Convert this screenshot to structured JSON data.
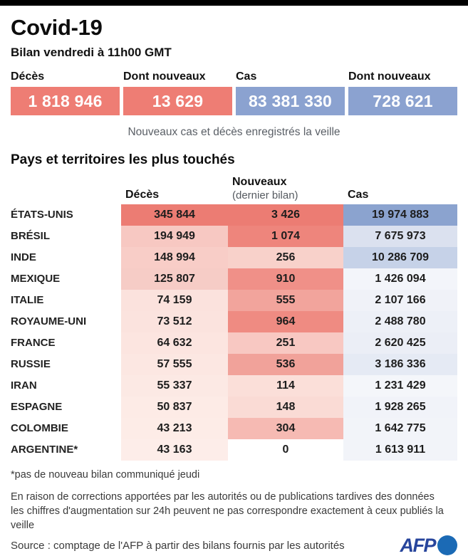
{
  "header": {
    "title": "Covid-19",
    "subtitle": "Bilan vendredi à 11h00 GMT"
  },
  "summary": {
    "items": [
      {
        "label": "Décès",
        "value": "1 818 946",
        "color": "#ee7d74"
      },
      {
        "label": "Dont nouveaux",
        "value": "13 629",
        "color": "#ee7d74"
      },
      {
        "label": "Cas",
        "value": "83 381 330",
        "color": "#8ba2d0"
      },
      {
        "label": "Dont nouveaux",
        "value": "728 621",
        "color": "#8ba2d0"
      }
    ],
    "caption": "Nouveaux cas et décès enregistrés la veille"
  },
  "table": {
    "title": "Pays et territoires les plus touchés",
    "columns": {
      "deces": "Décès",
      "nouveaux": "Nouveaux",
      "nouveaux_sub": "(dernier bilan)",
      "cas": "Cas"
    },
    "rows": [
      {
        "country": "ÉTATS-UNIS",
        "deces": "345 844",
        "deces_bg": "#ec7c73",
        "nouveaux": "3 426",
        "nouveaux_bg": "#ec7c73",
        "cas": "19 974 883",
        "cas_bg": "#8ba3cf"
      },
      {
        "country": "BRÉSIL",
        "deces": "194 949",
        "deces_bg": "#f7c8c2",
        "nouveaux": "1 074",
        "nouveaux_bg": "#ee857c",
        "cas": "7 675 973",
        "cas_bg": "#dbe1ef"
      },
      {
        "country": "INDE",
        "deces": "148 994",
        "deces_bg": "#f8cdc7",
        "nouveaux": "256",
        "nouveaux_bg": "#f8d1ca",
        "cas": "10 286 709",
        "cas_bg": "#c6d2e8"
      },
      {
        "country": "MEXIQUE",
        "deces": "125 807",
        "deces_bg": "#f6ccc6",
        "nouveaux": "910",
        "nouveaux_bg": "#f09088",
        "cas": "1 426 094",
        "cas_bg": "#f3f5fa"
      },
      {
        "country": "ITALIE",
        "deces": "74 159",
        "deces_bg": "#fbe2dd",
        "nouveaux": "555",
        "nouveaux_bg": "#f2a49c",
        "cas": "2 107 166",
        "cas_bg": "#f0f2f8"
      },
      {
        "country": "ROYAUME-UNI",
        "deces": "73 512",
        "deces_bg": "#fbe3de",
        "nouveaux": "964",
        "nouveaux_bg": "#ef8b82",
        "cas": "2 488 780",
        "cas_bg": "#edf0f7"
      },
      {
        "country": "FRANCE",
        "deces": "64 632",
        "deces_bg": "#fce5e0",
        "nouveaux": "251",
        "nouveaux_bg": "#f8c8c2",
        "cas": "2 620 425",
        "cas_bg": "#ebeef6"
      },
      {
        "country": "RUSSIE",
        "deces": "57 555",
        "deces_bg": "#fce7e2",
        "nouveaux": "536",
        "nouveaux_bg": "#f1a29a",
        "cas": "3 186 336",
        "cas_bg": "#e5eaf4"
      },
      {
        "country": "IRAN",
        "deces": "55 337",
        "deces_bg": "#fce9e4",
        "nouveaux": "114",
        "nouveaux_bg": "#fbdfd9",
        "cas": "1 231 429",
        "cas_bg": "#f4f6fa"
      },
      {
        "country": "ESPAGNE",
        "deces": "50 837",
        "deces_bg": "#fdebe6",
        "nouveaux": "148",
        "nouveaux_bg": "#fadbd5",
        "cas": "1 928 265",
        "cas_bg": "#f1f3f9"
      },
      {
        "country": "COLOMBIE",
        "deces": "43 213",
        "deces_bg": "#fdece7",
        "nouveaux": "304",
        "nouveaux_bg": "#f6bab3",
        "cas": "1 642 775",
        "cas_bg": "#f2f4f9"
      },
      {
        "country": "ARGENTINE*",
        "deces": "43 163",
        "deces_bg": "#fdede9",
        "nouveaux": "0",
        "nouveaux_bg": "#ffffff",
        "cas": "1 613 911",
        "cas_bg": "#f2f4f9"
      }
    ],
    "footnote": "*pas de nouveau bilan communiqué jeudi"
  },
  "footer": {
    "disclaimer_line1": "En raison de corrections apportées par les autorités ou de publications tardives des données",
    "disclaimer_line2": "les chiffres d'augmentation sur 24h peuvent ne pas correspondre exactement à ceux publiés la veille",
    "source": "Source : comptage de l'AFP à partir des bilans fournis par les autorités",
    "logo_text": "AFP"
  },
  "chart_data": {
    "type": "heatmap",
    "title": "Pays et territoires les plus touchés",
    "subtitle": "Bilan vendredi à 11h00 GMT",
    "summary_totals": {
      "deces": 1818946,
      "deces_dont_nouveaux": 13629,
      "cas": 83381330,
      "cas_dont_nouveaux": 728621
    },
    "categories": [
      "ÉTATS-UNIS",
      "BRÉSIL",
      "INDE",
      "MEXIQUE",
      "ITALIE",
      "ROYAUME-UNI",
      "FRANCE",
      "RUSSIE",
      "IRAN",
      "ESPAGNE",
      "COLOMBIE",
      "ARGENTINE*"
    ],
    "series": [
      {
        "name": "Décès",
        "values": [
          345844,
          194949,
          148994,
          125807,
          74159,
          73512,
          64632,
          57555,
          55337,
          50837,
          43213,
          43163
        ]
      },
      {
        "name": "Nouveaux (dernier bilan)",
        "values": [
          3426,
          1074,
          256,
          910,
          555,
          964,
          251,
          536,
          114,
          148,
          304,
          0
        ]
      },
      {
        "name": "Cas",
        "values": [
          19974883,
          7675973,
          10286709,
          1426094,
          2107166,
          2488780,
          2620425,
          3186336,
          1231429,
          1928265,
          1642775,
          1613911
        ]
      }
    ],
    "legend_position": "none",
    "colors": {
      "deaths_accent": "#ee7d74",
      "cases_accent": "#8ba2d0"
    }
  }
}
